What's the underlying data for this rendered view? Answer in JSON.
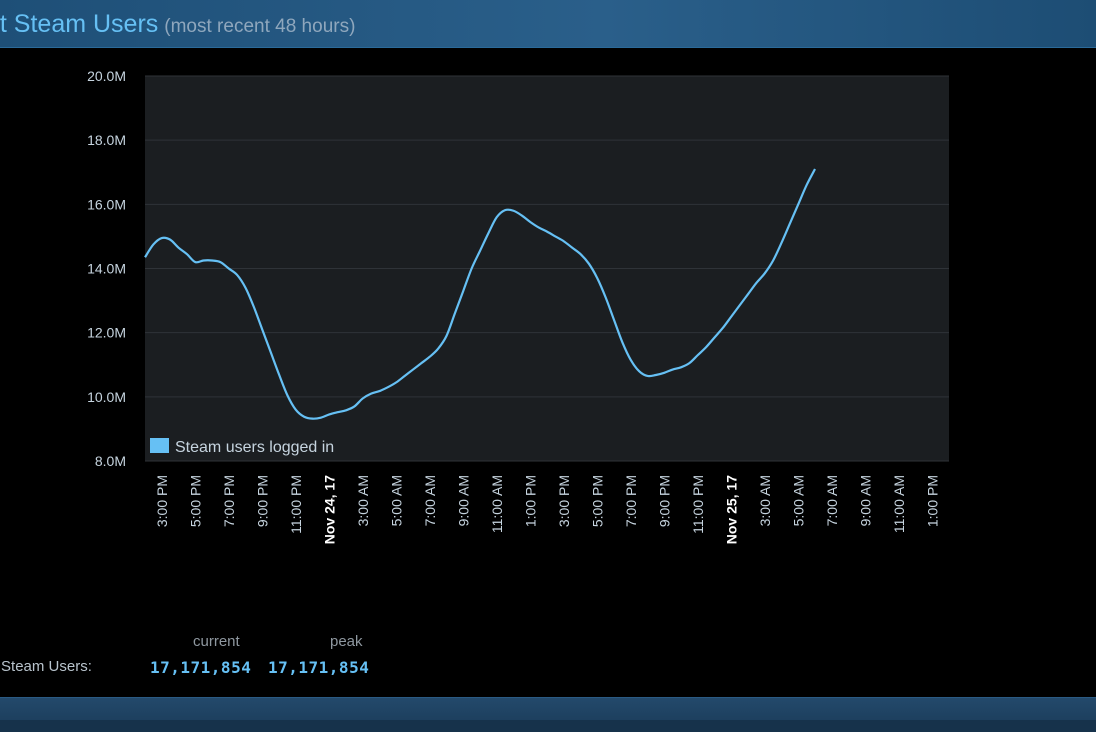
{
  "header": {
    "title": "nt Steam Users",
    "subtitle": "(most recent 48 hours)"
  },
  "chart_data": {
    "type": "line",
    "title": "",
    "xlabel": "",
    "ylabel": "",
    "ylim": [
      8000000,
      20000000
    ],
    "y_tick_values": [
      8000000,
      10000000,
      12000000,
      14000000,
      16000000,
      18000000,
      20000000
    ],
    "y_tick_labels": [
      "8.0M",
      "10.0M",
      "12.0M",
      "14.0M",
      "16.0M",
      "18.0M",
      "20.0M"
    ],
    "x_range_hours": [
      0,
      48
    ],
    "x_tick_hours": [
      1,
      3,
      5,
      7,
      9,
      11,
      13,
      15,
      17,
      19,
      21,
      23,
      25,
      27,
      29,
      31,
      33,
      35,
      37,
      39,
      41,
      43,
      45,
      47
    ],
    "x_tick_labels": [
      "3:00 PM",
      "5:00 PM",
      "7:00 PM",
      "9:00 PM",
      "11:00 PM",
      "Nov 24, 17",
      "3:00 AM",
      "5:00 AM",
      "7:00 AM",
      "9:00 AM",
      "11:00 AM",
      "1:00 PM",
      "3:00 PM",
      "5:00 PM",
      "7:00 PM",
      "9:00 PM",
      "11:00 PM",
      "Nov 25, 17",
      "3:00 AM",
      "5:00 AM",
      "7:00 AM",
      "9:00 AM",
      "11:00 AM",
      "1:00 PM"
    ],
    "x_tick_bold": [
      "Nov 24, 17",
      "Nov 25, 17"
    ],
    "grid": true,
    "legend_position": "bottom-left",
    "series": [
      {
        "name": "Steam users logged in",
        "color": "#66c0f4",
        "points": [
          [
            0,
            14.35
          ],
          [
            0.5,
            14.75
          ],
          [
            1,
            14.95
          ],
          [
            1.5,
            14.9
          ],
          [
            2,
            14.65
          ],
          [
            2.5,
            14.45
          ],
          [
            3,
            14.2
          ],
          [
            3.5,
            14.25
          ],
          [
            4,
            14.25
          ],
          [
            4.5,
            14.2
          ],
          [
            5,
            14.0
          ],
          [
            5.5,
            13.8
          ],
          [
            6,
            13.4
          ],
          [
            6.5,
            12.8
          ],
          [
            7,
            12.1
          ],
          [
            7.5,
            11.4
          ],
          [
            8,
            10.7
          ],
          [
            8.5,
            10.05
          ],
          [
            9,
            9.6
          ],
          [
            9.5,
            9.38
          ],
          [
            10,
            9.32
          ],
          [
            10.5,
            9.35
          ],
          [
            11,
            9.45
          ],
          [
            11.5,
            9.52
          ],
          [
            12,
            9.58
          ],
          [
            12.5,
            9.7
          ],
          [
            13,
            9.95
          ],
          [
            13.5,
            10.1
          ],
          [
            14,
            10.18
          ],
          [
            14.5,
            10.3
          ],
          [
            15,
            10.45
          ],
          [
            15.5,
            10.65
          ],
          [
            16,
            10.85
          ],
          [
            16.5,
            11.05
          ],
          [
            17,
            11.25
          ],
          [
            17.5,
            11.5
          ],
          [
            18,
            11.9
          ],
          [
            18.5,
            12.6
          ],
          [
            19,
            13.3
          ],
          [
            19.5,
            14.0
          ],
          [
            20,
            14.55
          ],
          [
            20.5,
            15.1
          ],
          [
            21,
            15.6
          ],
          [
            21.5,
            15.82
          ],
          [
            22,
            15.8
          ],
          [
            22.5,
            15.65
          ],
          [
            23,
            15.45
          ],
          [
            23.5,
            15.28
          ],
          [
            24,
            15.15
          ],
          [
            24.5,
            15.0
          ],
          [
            25,
            14.85
          ],
          [
            25.5,
            14.65
          ],
          [
            26,
            14.45
          ],
          [
            26.5,
            14.15
          ],
          [
            27,
            13.7
          ],
          [
            27.5,
            13.1
          ],
          [
            28,
            12.4
          ],
          [
            28.5,
            11.7
          ],
          [
            29,
            11.15
          ],
          [
            29.5,
            10.8
          ],
          [
            30,
            10.65
          ],
          [
            30.5,
            10.68
          ],
          [
            31,
            10.75
          ],
          [
            31.5,
            10.85
          ],
          [
            32,
            10.92
          ],
          [
            32.5,
            11.05
          ],
          [
            33,
            11.3
          ],
          [
            33.5,
            11.55
          ],
          [
            34,
            11.85
          ],
          [
            34.5,
            12.15
          ],
          [
            35,
            12.5
          ],
          [
            35.5,
            12.85
          ],
          [
            36,
            13.2
          ],
          [
            36.5,
            13.55
          ],
          [
            37,
            13.85
          ],
          [
            37.5,
            14.25
          ],
          [
            38,
            14.8
          ],
          [
            38.5,
            15.4
          ],
          [
            39,
            16.0
          ],
          [
            39.5,
            16.6
          ],
          [
            40,
            17.1
          ]
        ]
      }
    ]
  },
  "stats": {
    "col_current": "current",
    "col_peak": "peak",
    "row_label": "ent Steam Users:",
    "current_value": "17,171,854",
    "peak_value": "17,171,854"
  }
}
